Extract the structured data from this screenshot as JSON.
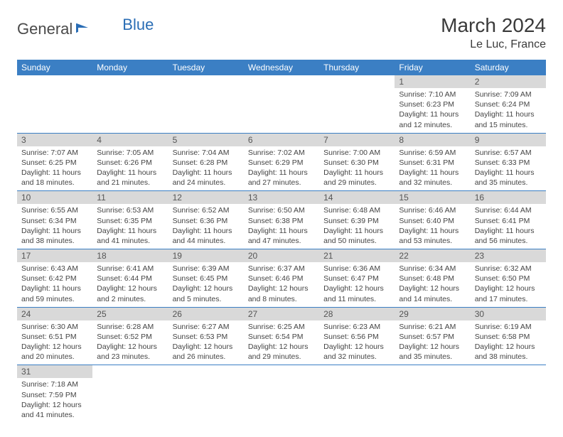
{
  "brand": {
    "part1": "General",
    "part2": "Blue"
  },
  "title": "March 2024",
  "location": "Le Luc, France",
  "colors": {
    "header_bg": "#3b7fc4",
    "header_text": "#ffffff",
    "daynum_bg": "#d9d9d9",
    "cell_border": "#3b7fc4",
    "brand_blue": "#2a6db5",
    "brand_gray": "#4a4a4a"
  },
  "weekdays": [
    "Sunday",
    "Monday",
    "Tuesday",
    "Wednesday",
    "Thursday",
    "Friday",
    "Saturday"
  ],
  "weeks": [
    [
      null,
      null,
      null,
      null,
      null,
      {
        "n": "1",
        "sr": "7:10 AM",
        "ss": "6:23 PM",
        "dl": "11 hours and 12 minutes."
      },
      {
        "n": "2",
        "sr": "7:09 AM",
        "ss": "6:24 PM",
        "dl": "11 hours and 15 minutes."
      }
    ],
    [
      {
        "n": "3",
        "sr": "7:07 AM",
        "ss": "6:25 PM",
        "dl": "11 hours and 18 minutes."
      },
      {
        "n": "4",
        "sr": "7:05 AM",
        "ss": "6:26 PM",
        "dl": "11 hours and 21 minutes."
      },
      {
        "n": "5",
        "sr": "7:04 AM",
        "ss": "6:28 PM",
        "dl": "11 hours and 24 minutes."
      },
      {
        "n": "6",
        "sr": "7:02 AM",
        "ss": "6:29 PM",
        "dl": "11 hours and 27 minutes."
      },
      {
        "n": "7",
        "sr": "7:00 AM",
        "ss": "6:30 PM",
        "dl": "11 hours and 29 minutes."
      },
      {
        "n": "8",
        "sr": "6:59 AM",
        "ss": "6:31 PM",
        "dl": "11 hours and 32 minutes."
      },
      {
        "n": "9",
        "sr": "6:57 AM",
        "ss": "6:33 PM",
        "dl": "11 hours and 35 minutes."
      }
    ],
    [
      {
        "n": "10",
        "sr": "6:55 AM",
        "ss": "6:34 PM",
        "dl": "11 hours and 38 minutes."
      },
      {
        "n": "11",
        "sr": "6:53 AM",
        "ss": "6:35 PM",
        "dl": "11 hours and 41 minutes."
      },
      {
        "n": "12",
        "sr": "6:52 AM",
        "ss": "6:36 PM",
        "dl": "11 hours and 44 minutes."
      },
      {
        "n": "13",
        "sr": "6:50 AM",
        "ss": "6:38 PM",
        "dl": "11 hours and 47 minutes."
      },
      {
        "n": "14",
        "sr": "6:48 AM",
        "ss": "6:39 PM",
        "dl": "11 hours and 50 minutes."
      },
      {
        "n": "15",
        "sr": "6:46 AM",
        "ss": "6:40 PM",
        "dl": "11 hours and 53 minutes."
      },
      {
        "n": "16",
        "sr": "6:44 AM",
        "ss": "6:41 PM",
        "dl": "11 hours and 56 minutes."
      }
    ],
    [
      {
        "n": "17",
        "sr": "6:43 AM",
        "ss": "6:42 PM",
        "dl": "11 hours and 59 minutes."
      },
      {
        "n": "18",
        "sr": "6:41 AM",
        "ss": "6:44 PM",
        "dl": "12 hours and 2 minutes."
      },
      {
        "n": "19",
        "sr": "6:39 AM",
        "ss": "6:45 PM",
        "dl": "12 hours and 5 minutes."
      },
      {
        "n": "20",
        "sr": "6:37 AM",
        "ss": "6:46 PM",
        "dl": "12 hours and 8 minutes."
      },
      {
        "n": "21",
        "sr": "6:36 AM",
        "ss": "6:47 PM",
        "dl": "12 hours and 11 minutes."
      },
      {
        "n": "22",
        "sr": "6:34 AM",
        "ss": "6:48 PM",
        "dl": "12 hours and 14 minutes."
      },
      {
        "n": "23",
        "sr": "6:32 AM",
        "ss": "6:50 PM",
        "dl": "12 hours and 17 minutes."
      }
    ],
    [
      {
        "n": "24",
        "sr": "6:30 AM",
        "ss": "6:51 PM",
        "dl": "12 hours and 20 minutes."
      },
      {
        "n": "25",
        "sr": "6:28 AM",
        "ss": "6:52 PM",
        "dl": "12 hours and 23 minutes."
      },
      {
        "n": "26",
        "sr": "6:27 AM",
        "ss": "6:53 PM",
        "dl": "12 hours and 26 minutes."
      },
      {
        "n": "27",
        "sr": "6:25 AM",
        "ss": "6:54 PM",
        "dl": "12 hours and 29 minutes."
      },
      {
        "n": "28",
        "sr": "6:23 AM",
        "ss": "6:56 PM",
        "dl": "12 hours and 32 minutes."
      },
      {
        "n": "29",
        "sr": "6:21 AM",
        "ss": "6:57 PM",
        "dl": "12 hours and 35 minutes."
      },
      {
        "n": "30",
        "sr": "6:19 AM",
        "ss": "6:58 PM",
        "dl": "12 hours and 38 minutes."
      }
    ],
    [
      {
        "n": "31",
        "sr": "7:18 AM",
        "ss": "7:59 PM",
        "dl": "12 hours and 41 minutes."
      },
      null,
      null,
      null,
      null,
      null,
      null
    ]
  ],
  "labels": {
    "sunrise": "Sunrise: ",
    "sunset": "Sunset: ",
    "daylight": "Daylight: "
  }
}
